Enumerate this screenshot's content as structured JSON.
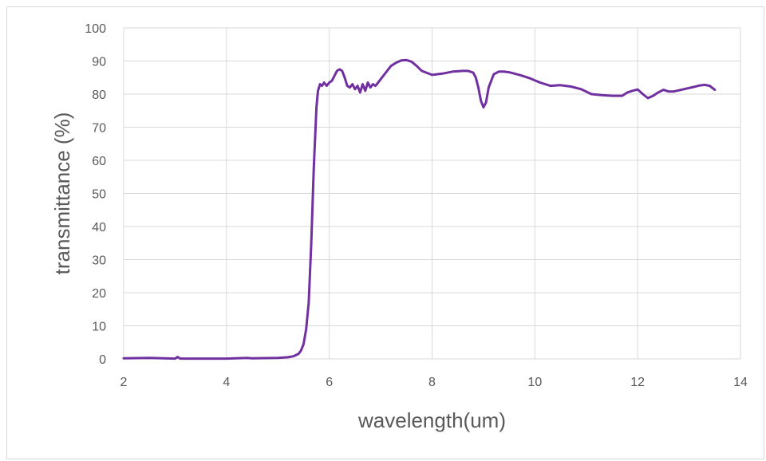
{
  "chart_data": {
    "type": "line",
    "title": "",
    "xlabel": "wavelength(um)",
    "ylabel": "transmittance (%)",
    "xlim": [
      2,
      14
    ],
    "ylim": [
      0,
      100
    ],
    "x_ticks": [
      2,
      4,
      6,
      8,
      10,
      12,
      14
    ],
    "y_ticks": [
      0,
      10,
      20,
      30,
      40,
      50,
      60,
      70,
      80,
      90,
      100
    ],
    "grid": true,
    "legend": "none",
    "series": [
      {
        "color": "#7030a0",
        "x": [
          2.0,
          2.5,
          3.0,
          3.05,
          3.1,
          3.5,
          4.0,
          4.4,
          4.5,
          5.0,
          5.2,
          5.3,
          5.4,
          5.45,
          5.5,
          5.55,
          5.6,
          5.65,
          5.7,
          5.75,
          5.78,
          5.82,
          5.86,
          5.9,
          5.95,
          6.0,
          6.05,
          6.1,
          6.15,
          6.2,
          6.25,
          6.3,
          6.35,
          6.4,
          6.45,
          6.5,
          6.55,
          6.6,
          6.65,
          6.7,
          6.75,
          6.8,
          6.85,
          6.9,
          6.95,
          7.0,
          7.1,
          7.2,
          7.3,
          7.4,
          7.5,
          7.6,
          7.7,
          7.8,
          8.0,
          8.2,
          8.4,
          8.6,
          8.7,
          8.8,
          8.85,
          8.9,
          8.95,
          9.0,
          9.05,
          9.1,
          9.2,
          9.3,
          9.4,
          9.5,
          9.7,
          9.9,
          10.1,
          10.3,
          10.5,
          10.7,
          10.9,
          11.1,
          11.3,
          11.5,
          11.7,
          11.8,
          11.9,
          12.0,
          12.1,
          12.2,
          12.3,
          12.4,
          12.5,
          12.6,
          12.7,
          12.9,
          13.1,
          13.2,
          13.3,
          13.4,
          13.5
        ],
        "y": [
          0.2,
          0.3,
          0.1,
          0.6,
          0.1,
          0.1,
          0.1,
          0.3,
          0.2,
          0.3,
          0.5,
          0.8,
          1.5,
          2.5,
          4.5,
          9.0,
          17.0,
          35.0,
          58.0,
          76.0,
          81.0,
          83.0,
          82.5,
          83.5,
          82.5,
          83.5,
          84.0,
          85.5,
          87.0,
          87.5,
          87.0,
          85.0,
          82.5,
          82.0,
          83.0,
          81.5,
          82.5,
          80.5,
          83.0,
          81.0,
          83.5,
          82.0,
          83.0,
          82.5,
          83.5,
          84.5,
          86.5,
          88.5,
          89.5,
          90.2,
          90.3,
          89.8,
          88.5,
          87.0,
          85.8,
          86.2,
          86.8,
          87.0,
          87.0,
          86.5,
          85.0,
          82.0,
          78.0,
          76.0,
          77.5,
          82.0,
          86.0,
          86.8,
          86.8,
          86.6,
          85.8,
          84.8,
          83.5,
          82.5,
          82.7,
          82.3,
          81.5,
          80.0,
          79.7,
          79.5,
          79.5,
          80.5,
          81.0,
          81.4,
          80.0,
          78.8,
          79.5,
          80.5,
          81.3,
          80.8,
          80.8,
          81.5,
          82.2,
          82.6,
          82.8,
          82.5,
          81.3
        ]
      }
    ]
  }
}
